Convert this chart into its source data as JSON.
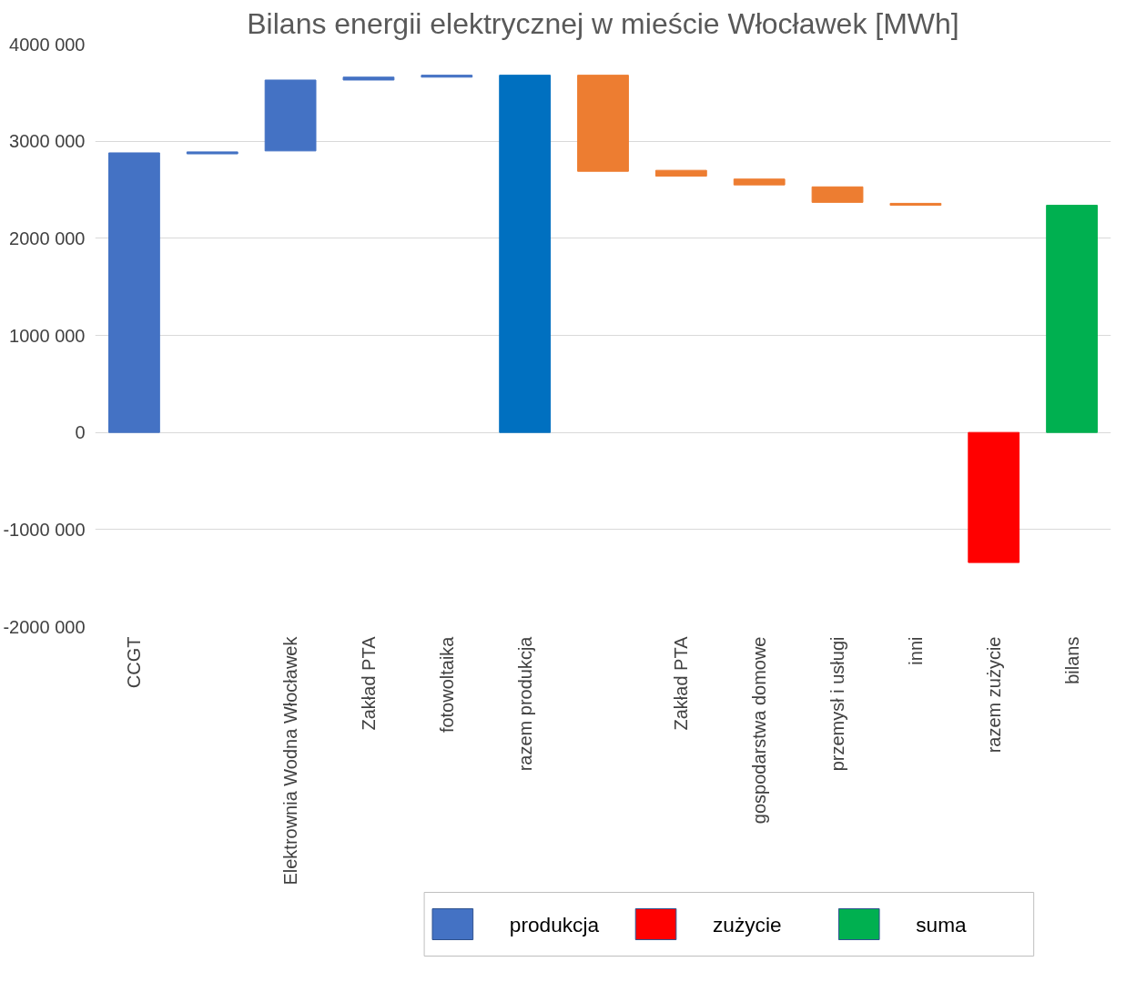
{
  "chart_data": {
    "type": "bar",
    "title": "Bilans energii elektrycznej w mieście Włocławek [MWh]",
    "categories": [
      "CCGT",
      null,
      "Elektrownia Wodna Włocławek",
      "Zakład PTA",
      "fotowoltaika",
      "razem produkcja",
      null,
      "Zakład PTA",
      "gospodarstwa domowe",
      "przemysł i usługi",
      "inni",
      "razem zużycie",
      "bilans"
    ],
    "series": [
      {
        "name": "produkcja",
        "color": "#4472c4",
        "values": [
          2880000,
          20000,
          730000,
          30000,
          20000,
          3680000,
          null,
          null,
          null,
          null,
          null,
          null,
          null
        ],
        "base": [
          0,
          2870000,
          2900000,
          3630000,
          3660000,
          0,
          null,
          null,
          null,
          null,
          null,
          null,
          null
        ],
        "colors": [
          "#4472c4",
          "#4472c4",
          "#4472c4",
          "#4472c4",
          "#4472c4",
          "#0070c0",
          null,
          null,
          null,
          null,
          null,
          null,
          null
        ]
      },
      {
        "name": "zużycie",
        "color": "#ff0000",
        "values": [
          null,
          null,
          null,
          null,
          null,
          null,
          -990000,
          -60000,
          -60000,
          -160000,
          -20000,
          -1340000,
          null
        ],
        "base": [
          null,
          null,
          null,
          null,
          null,
          null,
          3680000,
          2700000,
          2610000,
          2530000,
          2360000,
          0,
          null
        ],
        "colors": [
          null,
          null,
          null,
          null,
          null,
          null,
          "#ed7d31",
          "#ed7d31",
          "#ed7d31",
          "#ed7d31",
          "#ed7d31",
          "#ff0000",
          null
        ]
      },
      {
        "name": "suma",
        "color": "#00b050",
        "values": [
          null,
          null,
          null,
          null,
          null,
          null,
          null,
          null,
          null,
          null,
          null,
          null,
          2340000
        ],
        "base": [
          null,
          null,
          null,
          null,
          null,
          null,
          null,
          null,
          null,
          null,
          null,
          null,
          0
        ],
        "colors": [
          null,
          null,
          null,
          null,
          null,
          null,
          null,
          null,
          null,
          null,
          null,
          null,
          "#00b050"
        ]
      }
    ],
    "ylim": [
      -2000000,
      4000000
    ],
    "yticks": [
      {
        "value": -2000000,
        "label": "-2000 000"
      },
      {
        "value": -1000000,
        "label": "-1000 000"
      },
      {
        "value": 0,
        "label": "0"
      },
      {
        "value": 1000000,
        "label": "1000 000"
      },
      {
        "value": 2000000,
        "label": "2000 000"
      },
      {
        "value": 3000000,
        "label": "3000 000"
      },
      {
        "value": 4000000,
        "label": "4000 000"
      }
    ],
    "grid": "y",
    "legend": "bottom"
  }
}
